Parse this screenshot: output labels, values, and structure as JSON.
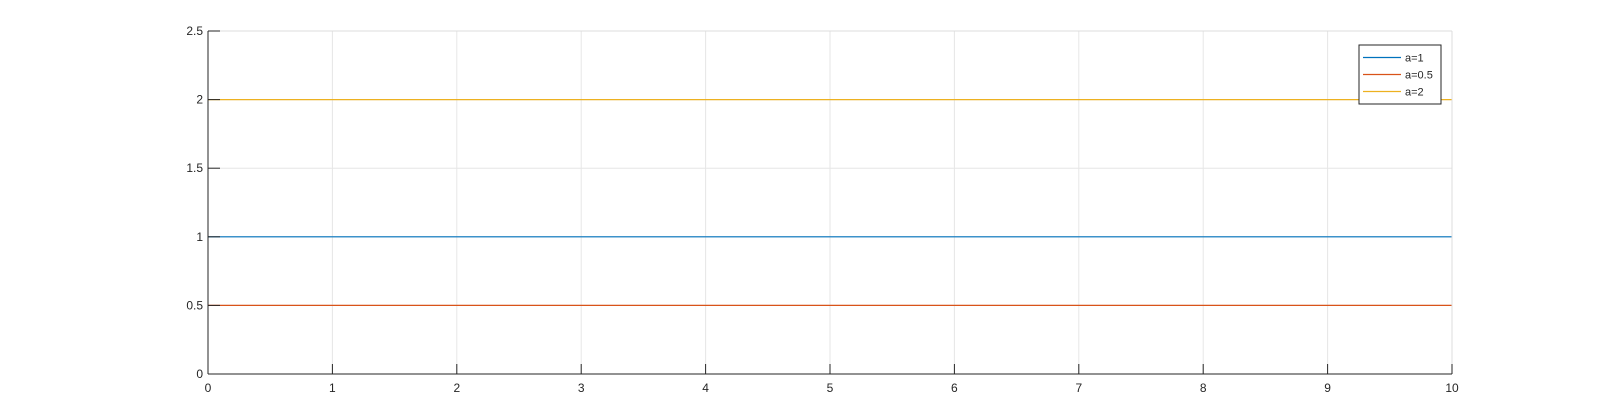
{
  "chart_data": {
    "type": "line",
    "title": "",
    "xlabel": "",
    "ylabel": "",
    "xlim": [
      0,
      10
    ],
    "ylim": [
      0,
      2.5
    ],
    "x_ticks": [
      0,
      1,
      2,
      3,
      4,
      5,
      6,
      7,
      8,
      9,
      10
    ],
    "x_tick_labels": [
      "0",
      "1",
      "2",
      "3",
      "4",
      "5",
      "6",
      "7",
      "8",
      "9",
      "10"
    ],
    "y_ticks": [
      0,
      0.5,
      1,
      1.5,
      2,
      2.5
    ],
    "y_tick_labels": [
      "0",
      "0.5",
      "1",
      "1.5",
      "2",
      "2.5"
    ],
    "grid": true,
    "legend_position": "top-right",
    "series": [
      {
        "name": "a=1",
        "color": "#0072BD",
        "x": [
          0,
          10
        ],
        "y": [
          1,
          1
        ]
      },
      {
        "name": "a=0.5",
        "color": "#D95319",
        "x": [
          0,
          10
        ],
        "y": [
          0.5,
          0.5
        ]
      },
      {
        "name": "a=2",
        "color": "#EDB120",
        "x": [
          0,
          10
        ],
        "y": [
          2,
          2
        ]
      }
    ]
  }
}
